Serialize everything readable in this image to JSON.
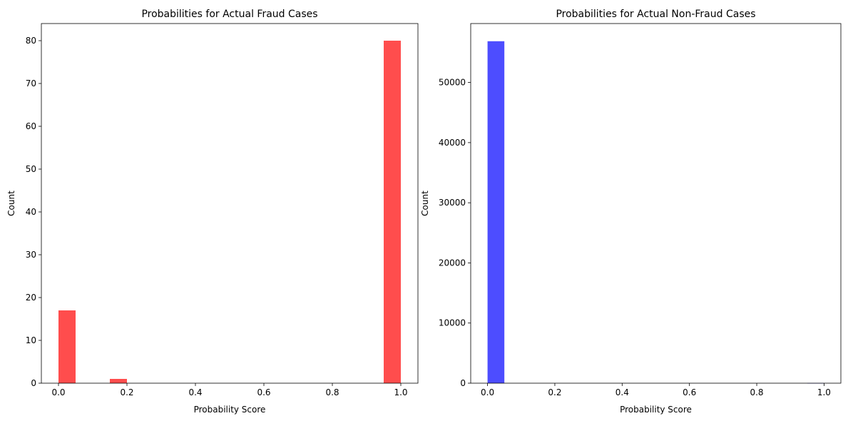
{
  "chart_data": [
    {
      "type": "bar",
      "title": "Probabilities for Actual Fraud Cases",
      "xlabel": "Probability Score",
      "ylabel": "Count",
      "xlim": [
        -0.05,
        1.05
      ],
      "ylim": [
        0,
        84
      ],
      "xticks": [
        "0.0",
        "0.2",
        "0.4",
        "0.6",
        "0.8",
        "1.0"
      ],
      "yticks": [
        "0",
        "10",
        "20",
        "30",
        "40",
        "50",
        "60",
        "70",
        "80"
      ],
      "bin_width": 0.05,
      "bins": [
        {
          "x0": 0.0,
          "x1": 0.05,
          "value": 17
        },
        {
          "x0": 0.15,
          "x1": 0.2,
          "value": 1
        },
        {
          "x0": 0.95,
          "x1": 1.0,
          "value": 80
        }
      ],
      "color": "#ff4d4d",
      "grid": false
    },
    {
      "type": "bar",
      "title": "Probabilities for Actual Non-Fraud Cases",
      "xlabel": "Probability Score",
      "ylabel": "Count",
      "xlim": [
        -0.05,
        1.05
      ],
      "ylim": [
        0,
        59800
      ],
      "xticks": [
        "0.0",
        "0.2",
        "0.4",
        "0.6",
        "0.8",
        "1.0"
      ],
      "yticks": [
        "0",
        "10000",
        "20000",
        "30000",
        "40000",
        "50000"
      ],
      "bin_width": 0.05,
      "bins": [
        {
          "x0": 0.0,
          "x1": 0.05,
          "value": 56860
        },
        {
          "x0": 0.95,
          "x1": 1.0,
          "value": 25
        }
      ],
      "color": "#4d4dff",
      "grid": false
    }
  ]
}
